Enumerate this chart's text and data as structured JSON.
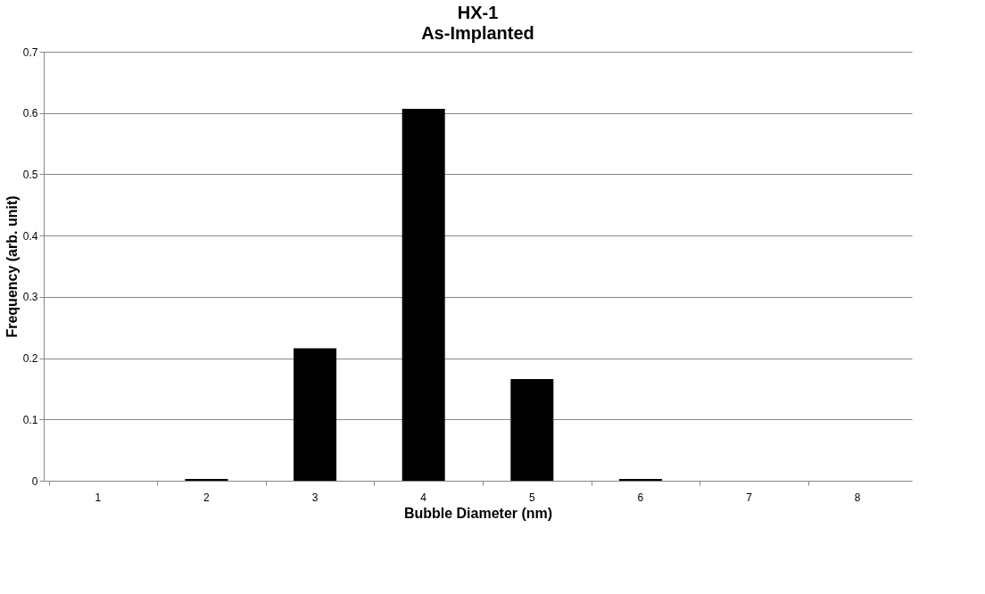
{
  "chart_data": {
    "type": "bar",
    "title": "HX-1",
    "subtitle": "As-Implanted",
    "xlabel": "Bubble Diameter (nm)",
    "ylabel": "Frequency (arb. unit)",
    "categories": [
      "1",
      "2",
      "3",
      "4",
      "5",
      "6",
      "7",
      "8"
    ],
    "values": [
      0,
      0.003,
      0.216,
      0.607,
      0.166,
      0.003,
      0,
      0
    ],
    "color": "#000000",
    "ylim": [
      0,
      0.7
    ],
    "yticks": [
      0,
      0.1,
      0.2,
      0.3,
      0.4,
      0.5,
      0.6,
      0.7
    ],
    "grid": "y"
  }
}
